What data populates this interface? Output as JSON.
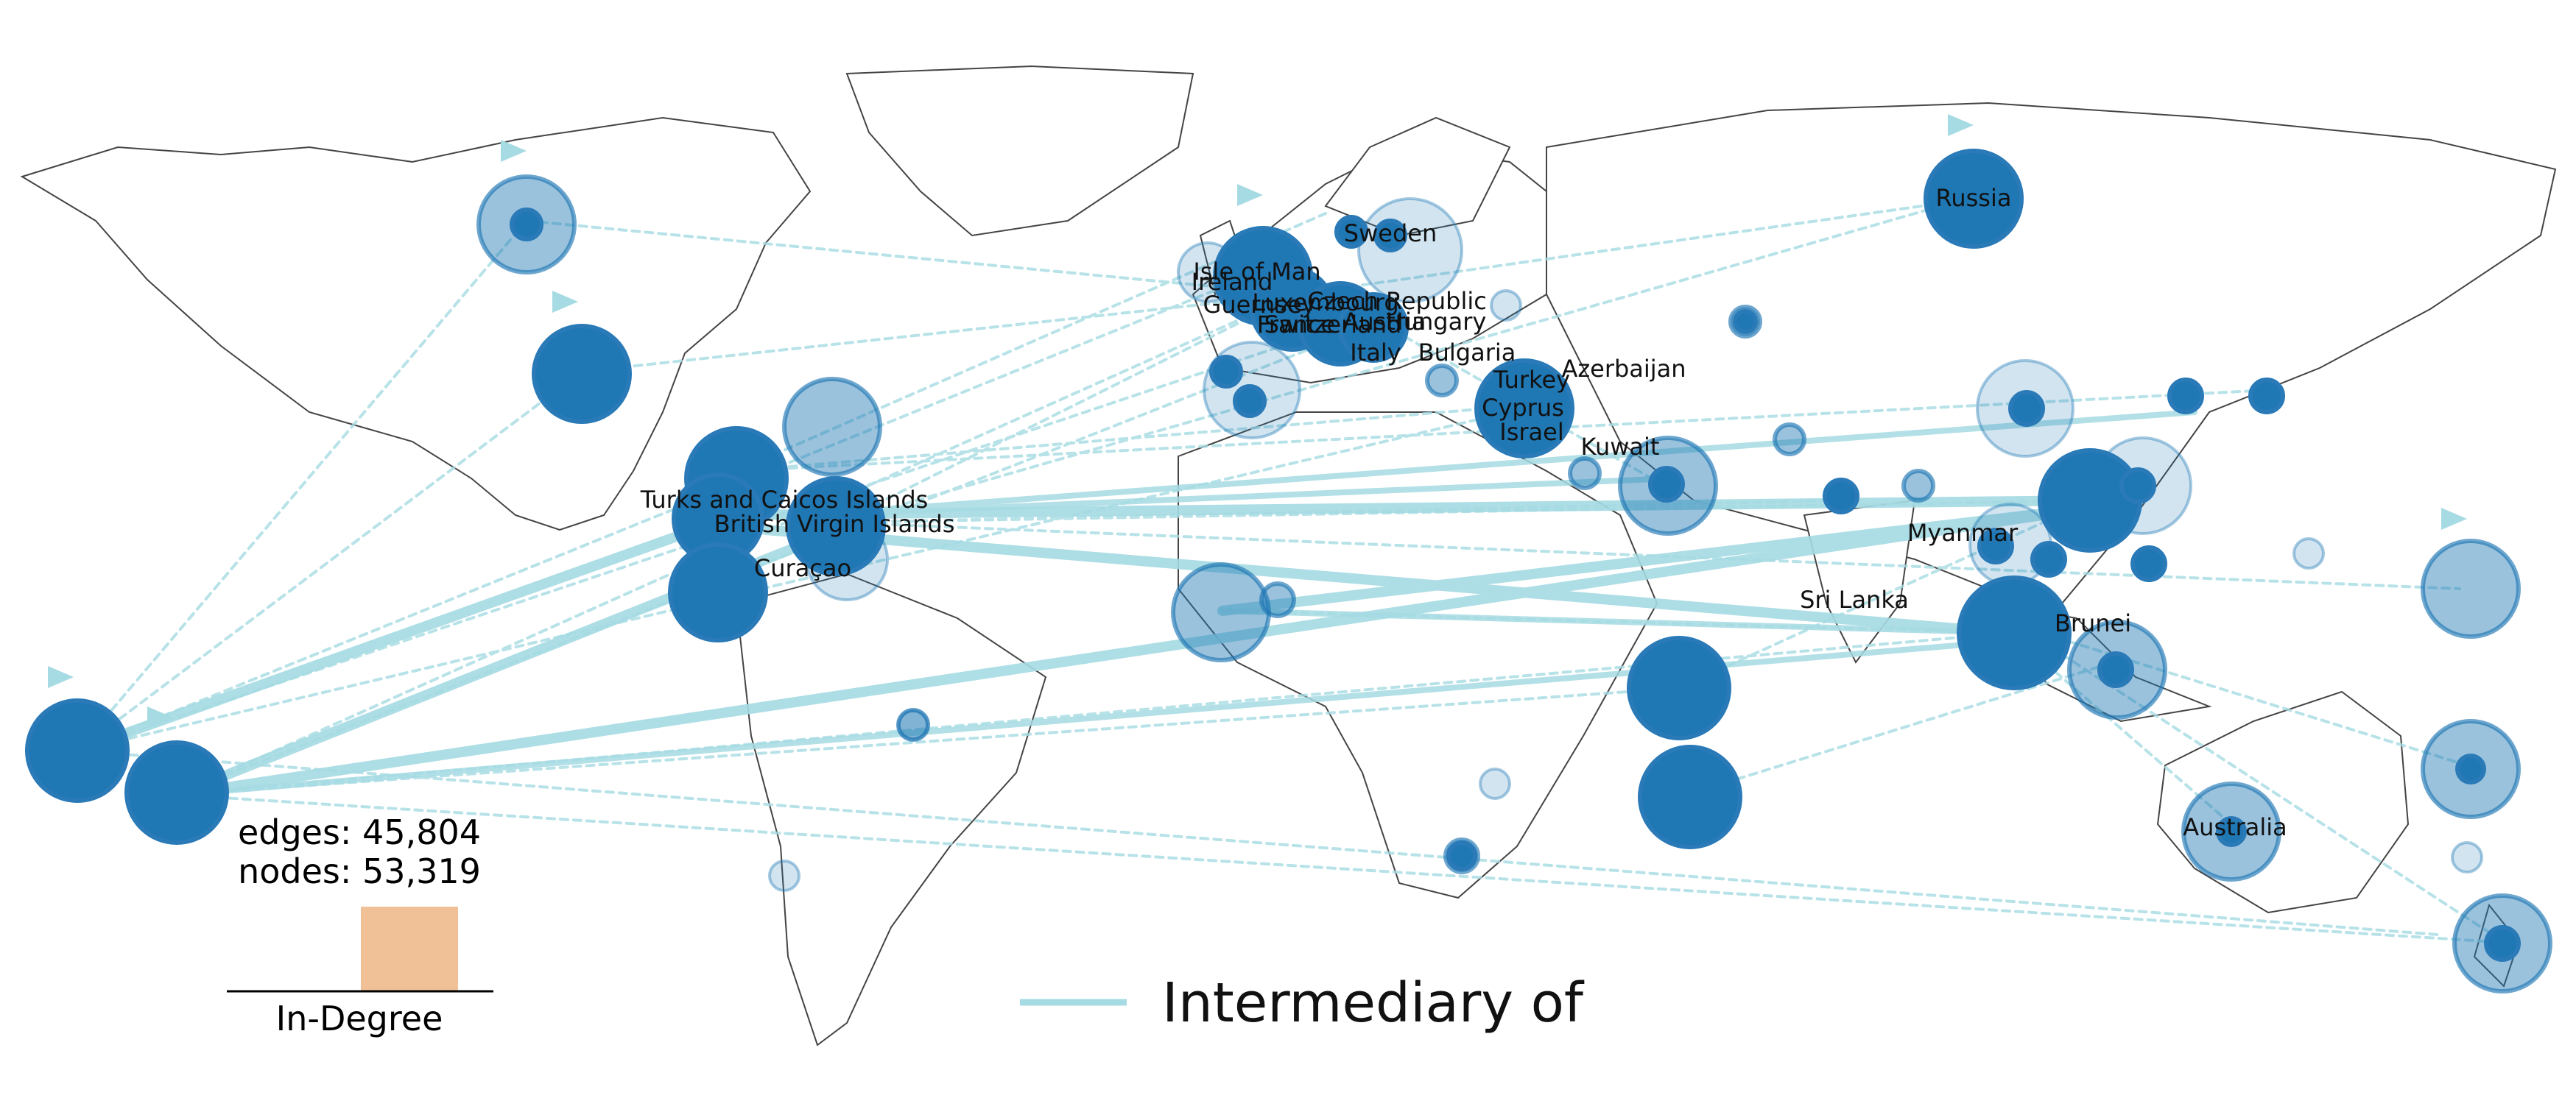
{
  "stats": {
    "edges": "edges: 45,804",
    "nodes": "nodes: 53,319"
  },
  "legend": {
    "edge_label": "Intermediary of",
    "edge_color": "#a6dbe3"
  },
  "indegree": {
    "label": "In-Degree",
    "bar_color": "#f0c196"
  },
  "colors": {
    "node": "#1f77b4",
    "edge": "#a6dbe3",
    "land": "#ffffff",
    "border": "#333333"
  },
  "labels": {
    "russia": "Russia",
    "sweden": "Sweden",
    "isle_of_man": "Isle of Man",
    "ireland": "Ireland",
    "guernsey": "Guernsey",
    "luxembourg": "Luxembourg",
    "czech_republic": "Czech Republic",
    "france": "France",
    "switzerland": "Switzerland",
    "austria": "Austria",
    "hungary": "Hungary",
    "italy": "Italy",
    "bulgaria": "Bulgaria",
    "azerbaijan": "Azerbaijan",
    "turkey": "Turkey",
    "cyprus": "Cyprus",
    "israel": "Israel",
    "kuwait": "Kuwait",
    "turks_caicos": "Turks and Caicos Islands",
    "bvi": "British Virgin Islands",
    "curacao": "Curaçao",
    "myanmar": "Myanmar",
    "sri_lanka": "Sri Lanka",
    "brunei": "Brunei",
    "australia": "Australia"
  }
}
